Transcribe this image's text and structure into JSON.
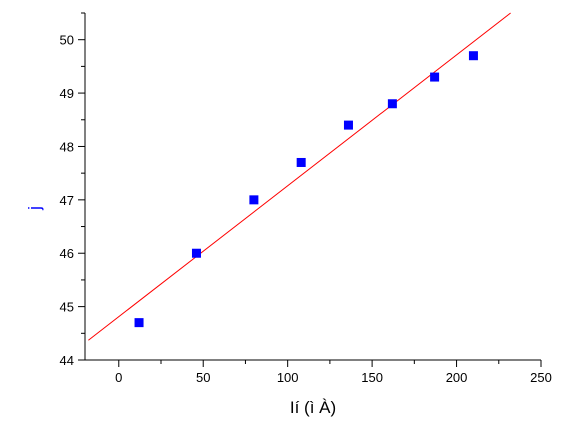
{
  "chart_data": {
    "type": "scatter",
    "xlabel": "Ií  (ì À)",
    "ylabel": "j",
    "xlim": [
      -20,
      250
    ],
    "ylim": [
      44,
      50.5
    ],
    "x_ticks": [
      0,
      50,
      100,
      150,
      200,
      250
    ],
    "y_ticks": [
      44,
      45,
      46,
      47,
      48,
      49,
      50
    ],
    "grid": false,
    "series": [
      {
        "marker": "square",
        "x": [
          12,
          46,
          80,
          108,
          136,
          162,
          187,
          210
        ],
        "y": [
          44.7,
          46.0,
          47.0,
          47.7,
          48.4,
          48.8,
          49.3,
          49.7
        ]
      }
    ],
    "fit_line": {
      "x": [
        -18,
        232
      ],
      "y": [
        44.37,
        50.5
      ]
    },
    "colors": {
      "markers": "#0000ff",
      "fit_line": "#ff0000",
      "axis": "#000000",
      "ylabel": "#0000ff"
    }
  }
}
